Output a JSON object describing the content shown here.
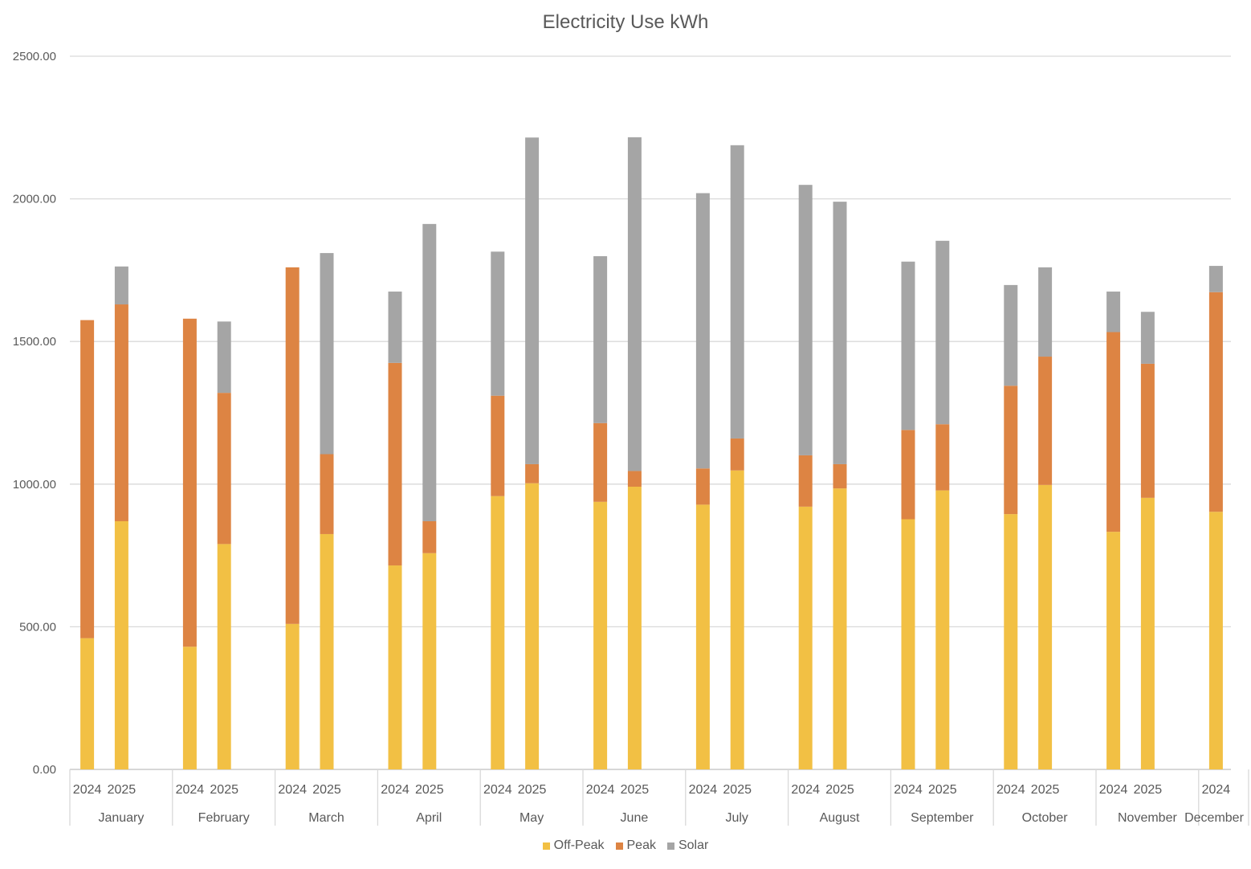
{
  "chart_data": {
    "type": "bar",
    "stacked": true,
    "title": "Electricity Use kWh",
    "xlabel": "",
    "ylabel": "",
    "ylim": [
      0,
      2500
    ],
    "y_ticks": [
      "0.00",
      "500.00",
      "1000.00",
      "1500.00",
      "2000.00",
      "2500.00"
    ],
    "grid": true,
    "legend_position": "bottom",
    "months": [
      "January",
      "February",
      "March",
      "April",
      "May",
      "June",
      "July",
      "August",
      "September",
      "October",
      "November",
      "December"
    ],
    "categories": [
      "January 2024",
      "January 2025",
      "February 2024",
      "February 2025",
      "March 2024",
      "March 2025",
      "April 2024",
      "April 2025",
      "May 2024",
      "May 2025",
      "June 2024",
      "June 2025",
      "July 2024",
      "July 2025",
      "August 2024",
      "August 2025",
      "September 2024",
      "September 2025",
      "October 2024",
      "October 2025",
      "November 2024",
      "November 2025",
      "December 2024"
    ],
    "year_labels": [
      "2024",
      "2025",
      "2024",
      "2025",
      "2024",
      "2025",
      "2024",
      "2025",
      "2024",
      "2025",
      "2024",
      "2025",
      "2024",
      "2025",
      "2024",
      "2025",
      "2024",
      "2025",
      "2024",
      "2025",
      "2024",
      "2025",
      "2024"
    ],
    "month_index": [
      0,
      0,
      1,
      1,
      2,
      2,
      3,
      3,
      4,
      4,
      5,
      5,
      6,
      6,
      7,
      7,
      8,
      8,
      9,
      9,
      10,
      10,
      11
    ],
    "year_slot": [
      0,
      1,
      0,
      1,
      0,
      1,
      0,
      1,
      0,
      1,
      0,
      1,
      0,
      1,
      0,
      1,
      0,
      1,
      0,
      1,
      0,
      1,
      0
    ],
    "series": [
      {
        "name": "Off-Peak",
        "color": "#F2C044",
        "values": [
          460,
          870,
          430,
          790,
          510,
          825,
          715,
          758,
          958,
          1003,
          938,
          991,
          928,
          1048,
          921,
          985,
          877,
          978,
          895,
          997,
          833,
          952,
          903
        ]
      },
      {
        "name": "Peak",
        "color": "#DD8443",
        "values": [
          1115,
          760,
          1150,
          530,
          1250,
          280,
          710,
          112,
          352,
          67,
          276,
          55,
          127,
          112,
          180,
          85,
          313,
          232,
          450,
          450,
          700,
          470,
          770
        ]
      },
      {
        "name": "Solar",
        "color": "#A5A5A5",
        "values": [
          0,
          133,
          0,
          250,
          0,
          705,
          250,
          1042,
          505,
          1145,
          585,
          1170,
          965,
          1028,
          948,
          920,
          590,
          643,
          353,
          313,
          142,
          182,
          92
        ]
      }
    ]
  }
}
